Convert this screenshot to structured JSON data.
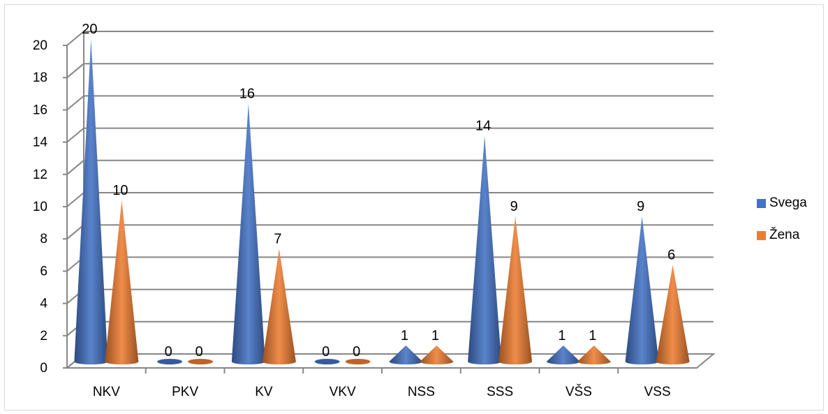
{
  "chart_data": {
    "type": "bar",
    "bar_shape": "cone-3d",
    "categories": [
      "NKV",
      "PKV",
      "KV",
      "VKV",
      "NSS",
      "SSS",
      "VŠS",
      "VSS"
    ],
    "series": [
      {
        "name": "Svega",
        "values": [
          20,
          0,
          16,
          0,
          1,
          14,
          1,
          9
        ],
        "color": "#4472C4"
      },
      {
        "name": "Žena",
        "values": [
          10,
          0,
          7,
          0,
          1,
          9,
          1,
          6
        ],
        "color": "#ED7D31"
      }
    ],
    "data_labels": [
      [
        "20",
        "0",
        "16",
        "0",
        "1",
        "14",
        "1",
        "9"
      ],
      [
        "10",
        "0",
        "7",
        "0",
        "1",
        "9",
        "1",
        "6"
      ]
    ],
    "y_ticks": [
      "0",
      "2",
      "4",
      "6",
      "8",
      "10",
      "12",
      "14",
      "16",
      "18",
      "20"
    ],
    "ylim": [
      0,
      20
    ],
    "grid": true,
    "legend_position": "right"
  }
}
